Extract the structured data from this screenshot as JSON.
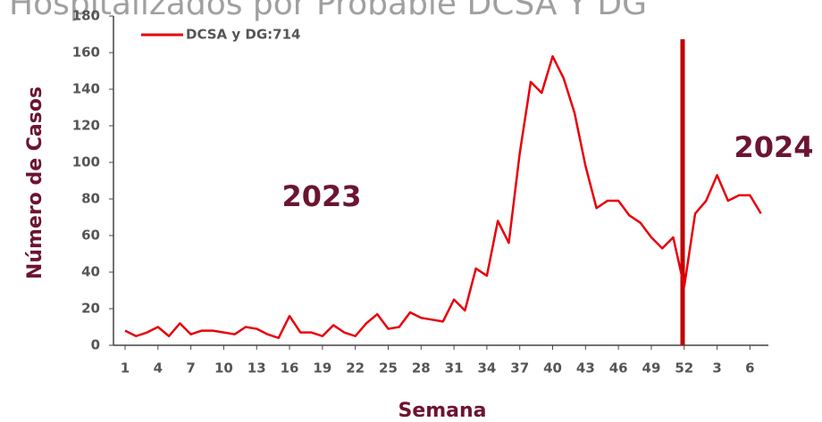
{
  "chart_data": {
    "type": "line",
    "title": "Hospitalizados por Probable DCSA Y DG",
    "x_label": "Semana",
    "y_label": "Número de Casos",
    "annotations": [
      "2023",
      "2024"
    ],
    "categories": [
      "1",
      null,
      null,
      "4",
      null,
      null,
      "7",
      null,
      null,
      "10",
      null,
      null,
      "13",
      null,
      null,
      "16",
      null,
      null,
      "19",
      null,
      null,
      "22",
      null,
      null,
      "25",
      null,
      null,
      "28",
      null,
      null,
      "31",
      null,
      null,
      "34",
      null,
      null,
      "37",
      null,
      null,
      "40",
      null,
      null,
      "43",
      null,
      null,
      "46",
      null,
      null,
      "49",
      null,
      null,
      "52",
      null,
      null,
      "3",
      null,
      null,
      "6",
      null
    ],
    "series": [
      {
        "name": "DCSA y DG:714",
        "color": "#e8000b",
        "values": [
          8,
          5,
          7,
          10,
          5,
          12,
          6,
          8,
          8,
          7,
          6,
          10,
          9,
          6,
          4,
          16,
          7,
          7,
          5,
          11,
          7,
          5,
          12,
          17,
          9,
          10,
          18,
          15,
          14,
          13,
          25,
          19,
          42,
          38,
          68,
          56,
          105,
          144,
          138,
          158,
          146,
          127,
          98,
          75,
          79,
          79,
          71,
          67,
          59,
          53,
          59,
          32,
          72,
          79,
          93,
          79,
          82,
          82,
          72
        ]
      }
    ],
    "ylim": [
      0,
      180
    ],
    "yticks": [
      0,
      20,
      40,
      60,
      80,
      100,
      120,
      140,
      160,
      180
    ],
    "legend": "top-left",
    "grid": false
  }
}
